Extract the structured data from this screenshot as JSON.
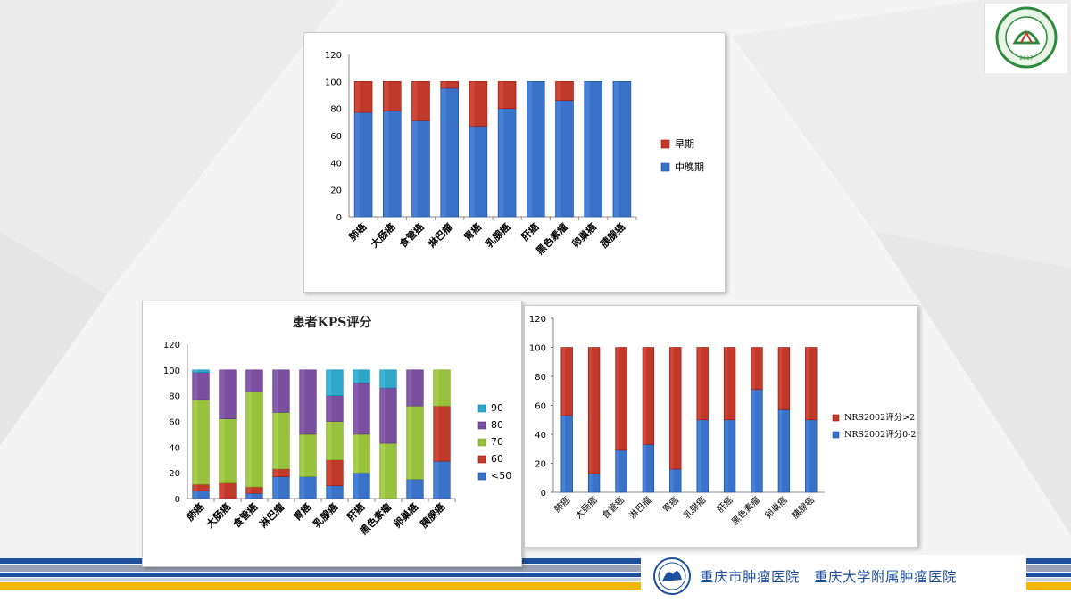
{
  "footer": {
    "hospital_text": "重庆市肿瘤医院　重庆大学附属肿瘤医院"
  },
  "logo": {
    "year": "2017"
  },
  "colors": {
    "red": "#c0392b",
    "blue": "#3a72c8",
    "green": "#98c13d",
    "purple": "#7a4fa0",
    "cyan": "#2ea7c9",
    "stripe_blue": "#1d4f9c",
    "stripe_yellow": "#f2b705"
  },
  "chart_data": [
    {
      "type": "bar",
      "stacked": true,
      "categories": [
        "肺癌",
        "大肠癌",
        "食管癌",
        "淋巴瘤",
        "胃癌",
        "乳腺癌",
        "肝癌",
        "黑色素瘤",
        "卵巢癌",
        "胰腺癌"
      ],
      "series": [
        {
          "name": "中晚期",
          "color": "#3a72c8",
          "values": [
            77,
            78,
            71,
            95,
            67,
            80,
            100,
            86,
            100,
            100
          ]
        },
        {
          "name": "早期",
          "color": "#c0392b",
          "values": [
            23,
            22,
            29,
            5,
            33,
            20,
            0,
            14,
            0,
            0
          ]
        }
      ],
      "legend_order": [
        "早期",
        "中晚期"
      ],
      "ylim": [
        0,
        120
      ],
      "yticks": [
        0,
        20,
        40,
        60,
        80,
        100,
        120
      ],
      "legend_position": "right"
    },
    {
      "type": "bar",
      "stacked": true,
      "title": "患者KPS评分",
      "categories": [
        "肺癌",
        "大肠癌",
        "食管癌",
        "淋巴瘤",
        "胃癌",
        "乳腺癌",
        "肝癌",
        "黑色素瘤",
        "卵巢癌",
        "胰腺癌"
      ],
      "series": [
        {
          "name": "<50",
          "color": "#3a72c8",
          "values": [
            6,
            0,
            4,
            17,
            17,
            10,
            20,
            0,
            15,
            29
          ]
        },
        {
          "name": "60",
          "color": "#c0392b",
          "values": [
            5,
            12,
            5,
            6,
            0,
            20,
            0,
            0,
            0,
            43
          ]
        },
        {
          "name": "70",
          "color": "#98c13d",
          "values": [
            66,
            50,
            74,
            44,
            33,
            30,
            30,
            43,
            57,
            28
          ]
        },
        {
          "name": "80",
          "color": "#7a4fa0",
          "values": [
            21,
            38,
            17,
            33,
            50,
            20,
            40,
            43,
            28,
            0
          ]
        },
        {
          "name": "90",
          "color": "#2ea7c9",
          "values": [
            2,
            0,
            0,
            0,
            0,
            20,
            10,
            14,
            0,
            0
          ]
        }
      ],
      "legend_order": [
        "90",
        "80",
        "70",
        "60",
        "<50"
      ],
      "ylim": [
        0,
        120
      ],
      "yticks": [
        0,
        20,
        40,
        60,
        80,
        100,
        120
      ],
      "legend_position": "right"
    },
    {
      "type": "bar",
      "stacked": true,
      "categories": [
        "肺癌",
        "大肠癌",
        "食管癌",
        "淋巴瘤",
        "胃癌",
        "乳腺癌",
        "肝癌",
        "黑色素瘤",
        "卵巢癌",
        "胰腺癌"
      ],
      "series": [
        {
          "name": "NRS2002评分0-2",
          "color": "#3a72c8",
          "values": [
            53,
            13,
            29,
            33,
            16,
            50,
            50,
            71,
            57,
            50
          ]
        },
        {
          "name": "NRS2002评分>2",
          "color": "#c0392b",
          "values": [
            47,
            87,
            71,
            67,
            84,
            50,
            50,
            29,
            43,
            50
          ]
        }
      ],
      "legend_order": [
        "NRS2002评分>2",
        "NRS2002评分0-2"
      ],
      "ylim": [
        0,
        120
      ],
      "yticks": [
        0,
        20,
        40,
        60,
        80,
        100,
        120
      ],
      "legend_position": "right"
    }
  ]
}
